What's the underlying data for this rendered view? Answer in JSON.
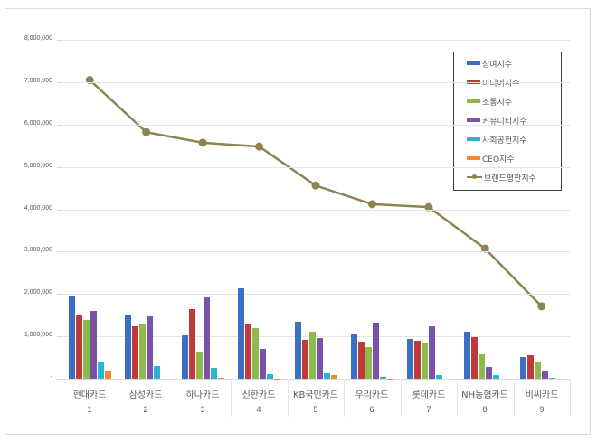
{
  "chart_data": {
    "type": "bar+line",
    "title": "",
    "xlabel": "",
    "ylabel": "",
    "ylim": [
      0,
      8000000
    ],
    "yticks": [
      "-",
      "1,000,000",
      "2,000,000",
      "3,000,000",
      "4,000,000",
      "5,000,000",
      "6,000,000",
      "7,000,000",
      "8,000,000"
    ],
    "grid": true,
    "legend_position": "top-right",
    "categories": [
      "현대카드",
      "삼성카드",
      "하나카드",
      "신한카드",
      "KB국민카드",
      "우리카드",
      "롯데카드",
      "NH농협카드",
      "비씨카드"
    ],
    "ranks": [
      "1",
      "2",
      "3",
      "4",
      "5",
      "6",
      "7",
      "8",
      "9"
    ],
    "series": [
      {
        "name": "참여지수",
        "type": "bar",
        "color": "#3a6fc4",
        "values": [
          1940000,
          1490000,
          1020000,
          2130000,
          1340000,
          1060000,
          940000,
          1120000,
          520000
        ]
      },
      {
        "name": "미디어지수",
        "type": "bar",
        "color": "#c0393b",
        "values": [
          1510000,
          1240000,
          1640000,
          1300000,
          920000,
          870000,
          890000,
          990000,
          550000
        ]
      },
      {
        "name": "소통지수",
        "type": "bar",
        "color": "#8dba4a",
        "values": [
          1390000,
          1280000,
          640000,
          1190000,
          1100000,
          750000,
          840000,
          570000,
          380000
        ]
      },
      {
        "name": "커뮤니티지수",
        "type": "bar",
        "color": "#7a52a8",
        "values": [
          1600000,
          1470000,
          1920000,
          700000,
          950000,
          1320000,
          1240000,
          270000,
          190000
        ]
      },
      {
        "name": "사회공헌지수",
        "type": "bar",
        "color": "#2fb2cf",
        "values": [
          380000,
          300000,
          260000,
          110000,
          120000,
          40000,
          80000,
          80000,
          30000
        ]
      },
      {
        "name": "CEO지수",
        "type": "bar",
        "color": "#f08a2c",
        "values": [
          190000,
          0,
          30000,
          10000,
          80000,
          10000,
          0,
          0,
          0
        ]
      },
      {
        "name": "브랜드평판지수",
        "type": "line",
        "color": "#8c8451",
        "values": [
          7050000,
          5820000,
          5570000,
          5480000,
          4560000,
          4120000,
          4050000,
          3070000,
          1710000
        ]
      }
    ]
  }
}
